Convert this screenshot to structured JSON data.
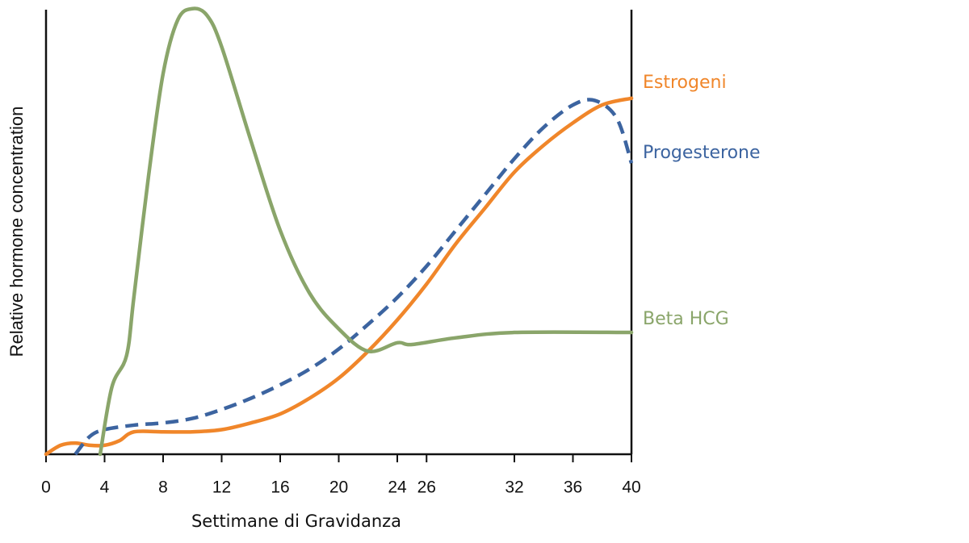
{
  "chart_data": {
    "type": "line",
    "y_label": "Relative hormone concentration",
    "x_label": "Settimane di Gravidanza",
    "xlim": [
      0,
      40
    ],
    "ylim": [
      0,
      100
    ],
    "xticks": [
      0,
      4,
      8,
      12,
      16,
      20,
      24,
      26,
      32,
      36,
      40
    ],
    "series": [
      {
        "name": "Estrogeni",
        "color": "#f0862a",
        "dashed": false,
        "x": [
          0,
          1,
          2,
          3,
          4,
          5,
          6,
          8,
          10,
          12,
          14,
          16,
          18,
          20,
          22,
          24,
          26,
          28,
          30,
          32,
          34,
          36,
          38,
          40
        ],
        "values": [
          0,
          2,
          2.5,
          2,
          2,
          3,
          5,
          5,
          5,
          5.5,
          7,
          9,
          12.5,
          17,
          23,
          30,
          38,
          47,
          55,
          63,
          69,
          74,
          78,
          79.5
        ]
      },
      {
        "name": "Progesterone",
        "color": "#3c64a0",
        "dashed": true,
        "x": [
          2,
          3,
          4,
          6,
          8,
          10,
          12,
          14,
          16,
          18,
          20,
          22,
          24,
          26,
          28,
          30,
          32,
          34,
          36,
          37.5,
          39,
          40
        ],
        "values": [
          0,
          4,
          5.5,
          6.5,
          7,
          8,
          10,
          12.5,
          15.5,
          19,
          23.5,
          29,
          35,
          42,
          50,
          58,
          66,
          73,
          78,
          79,
          75,
          65
        ]
      },
      {
        "name": "Beta HCG",
        "color": "#8aa56a",
        "dashed": false,
        "x": [
          3.7,
          4.5,
          5.5,
          6,
          7,
          8,
          9,
          10,
          11,
          12,
          14,
          16,
          18,
          20,
          22,
          24,
          25,
          28,
          32,
          40
        ],
        "values": [
          0,
          15,
          22,
          35,
          62,
          85,
          97,
          99.5,
          98,
          91,
          70,
          50,
          36,
          28,
          23,
          24.9,
          24.5,
          26,
          27.2,
          27.2
        ]
      }
    ]
  }
}
